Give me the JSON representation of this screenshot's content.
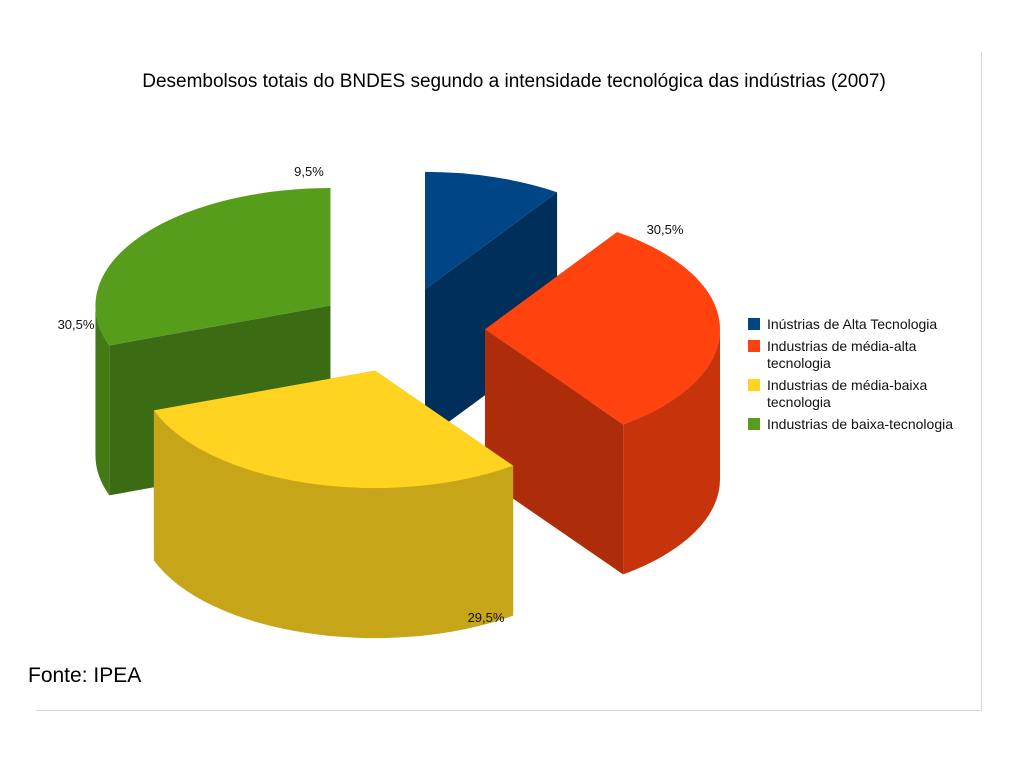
{
  "chart_data": {
    "type": "pie",
    "title": "Desembolsos totais do BNDES segundo a intensidade tecnológica das indústrias (2007)",
    "slices": [
      {
        "label": "Inústrias de Alta Tecnologia",
        "value": 9.5,
        "display": "9,5%",
        "color": "#004586"
      },
      {
        "label": "Industrias de média-alta tecnologia",
        "value": 30.5,
        "display": "30,5%",
        "color": "#ff420e"
      },
      {
        "label": "Industrias de média-baixa tecnologia",
        "value": 29.5,
        "display": "29,5%",
        "color": "#ffd320"
      },
      {
        "label": "Industrias de baixa-tecnologia",
        "value": 30.5,
        "display": "30,5%",
        "color": "#579d1c"
      }
    ],
    "legend_position": "right",
    "exploded": true,
    "three_d": true
  },
  "legend": {
    "items": [
      {
        "label": "Inústrias de Alta Tecnologia",
        "color": "#004586"
      },
      {
        "label": "Industrias de média-alta tecnologia",
        "color": "#ff420e"
      },
      {
        "label": "Industrias de média-baixa tecnologia",
        "color": "#ffd320"
      },
      {
        "label": "Industrias de baixa-tecnologia",
        "color": "#579d1c"
      }
    ]
  },
  "source_note": "Fonte: IPEA"
}
